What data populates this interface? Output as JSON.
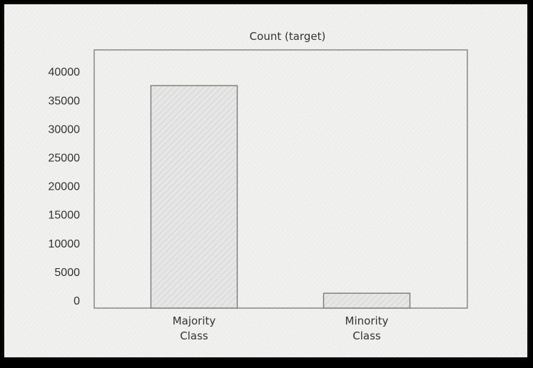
{
  "chart_data": {
    "type": "bar",
    "title": "Count (target)",
    "categories": [
      "Majority Class",
      "Minority Class"
    ],
    "category_lines": [
      [
        "Majority",
        "Class"
      ],
      [
        "Minority",
        "Class"
      ]
    ],
    "values": [
      38900,
      2600
    ],
    "ylim": [
      0,
      40000
    ],
    "yticks": [
      0,
      5000,
      10000,
      15000,
      20000,
      25000,
      30000,
      35000,
      40000
    ],
    "ytick_labels": [
      "0",
      "5000",
      "10000",
      "15000",
      "20000",
      "25000",
      "30000",
      "35000",
      "40000"
    ],
    "xlabel": "",
    "ylabel": "",
    "grid": false,
    "bar_fill": "#e6e6e6",
    "bar_stroke": "#7a7a7a",
    "axes_stroke": "#777777"
  }
}
